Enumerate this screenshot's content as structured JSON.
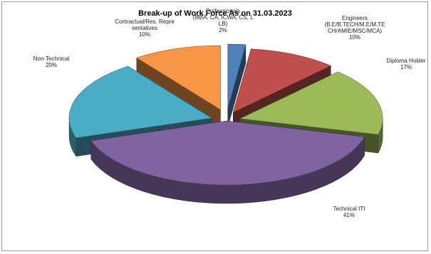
{
  "chart_data": {
    "type": "pie",
    "title": "Break-up of Work Force As on 31.03.2023",
    "slices": [
      {
        "key": "prof",
        "label_lines": [
          "Professionals",
          "(MBA, CA, ICWA, CS, L",
          "LB)"
        ],
        "pct_text": "2%",
        "value": 2,
        "color": "#4f81bd"
      },
      {
        "key": "eng",
        "label_lines": [
          "Engineers",
          "(B.E/B.TECH/M.E/M.TE",
          "CH/AMIE/MSC/MCA)"
        ],
        "pct_text": "10%",
        "value": 10,
        "color": "#c0504d"
      },
      {
        "key": "dip",
        "label_lines": [
          "Diploma Holder"
        ],
        "pct_text": "17%",
        "value": 17,
        "color": "#9bbb59"
      },
      {
        "key": "tech",
        "label_lines": [
          "Technical ITI"
        ],
        "pct_text": "41%",
        "value": 41,
        "color": "#8064a2"
      },
      {
        "key": "nontech",
        "label_lines": [
          "Non-Technical"
        ],
        "pct_text": "20%",
        "value": 20,
        "color": "#4bacc6"
      },
      {
        "key": "contract",
        "label_lines": [
          "Contractual/Res. Repre",
          "sentatives"
        ],
        "pct_text": "10%",
        "value": 10,
        "color": "#f79646"
      }
    ],
    "legend": "none",
    "style": "3d-exploded"
  }
}
